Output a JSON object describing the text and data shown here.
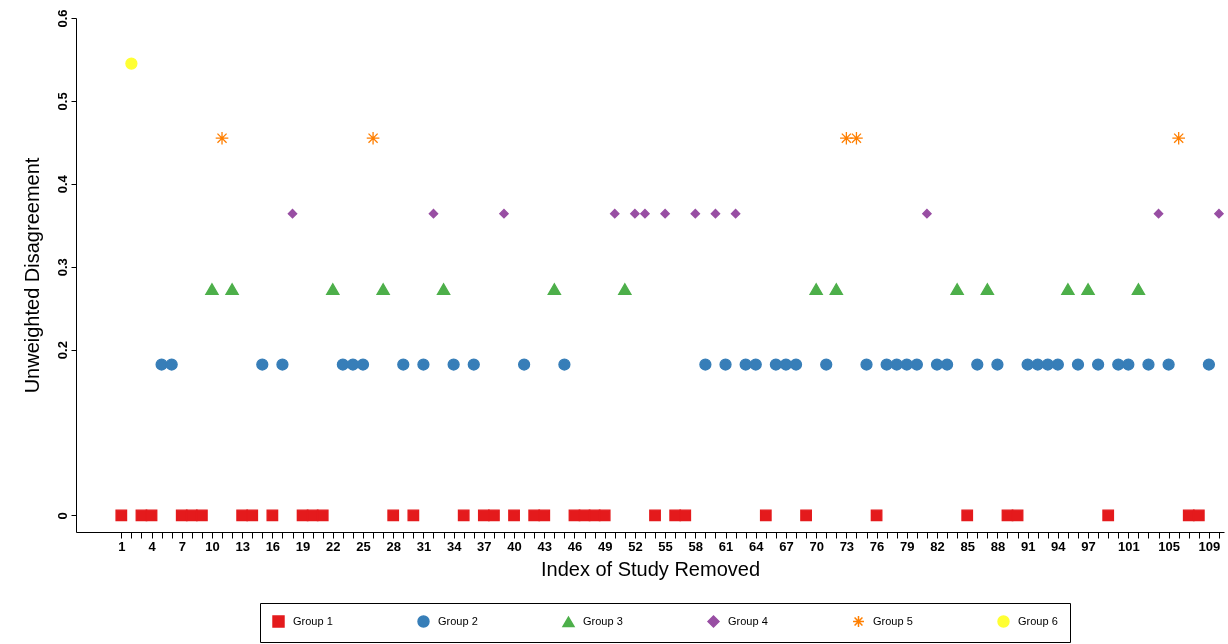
{
  "chart_data": {
    "type": "scatter",
    "xlabel": "Index of Study Removed",
    "ylabel": "Unweighted Disagreement",
    "xlim": [
      -3.5,
      110.5
    ],
    "ylim": [
      -0.02,
      0.6
    ],
    "yticks": [
      0,
      0.2,
      0.3,
      0.4,
      0.5,
      0.6
    ],
    "xticks": [
      1,
      {
        "value": 2,
        "label": null
      },
      {
        "value": 3,
        "label": null
      },
      4,
      {
        "value": 5,
        "label": null
      },
      {
        "value": 6,
        "label": null
      },
      7,
      {
        "value": 8,
        "label": null
      },
      {
        "value": 9,
        "label": null
      },
      10,
      {
        "value": 11,
        "label": null
      },
      {
        "value": 12,
        "label": null
      },
      13,
      {
        "value": 14,
        "label": null
      },
      {
        "value": 15,
        "label": null
      },
      16,
      {
        "value": 17,
        "label": null
      },
      {
        "value": 18,
        "label": null
      },
      19,
      {
        "value": 20,
        "label": null
      },
      {
        "value": 21,
        "label": null
      },
      22,
      {
        "value": 23,
        "label": null
      },
      {
        "value": 24,
        "label": null
      },
      25,
      {
        "value": 26,
        "label": null
      },
      {
        "value": 27,
        "label": null
      },
      28,
      {
        "value": 29,
        "label": null
      },
      {
        "value": 30,
        "label": null
      },
      31,
      {
        "value": 32,
        "label": null
      },
      {
        "value": 33,
        "label": null
      },
      34,
      {
        "value": 35,
        "label": null
      },
      {
        "value": 36,
        "label": null
      },
      37,
      {
        "value": 38,
        "label": null
      },
      {
        "value": 39,
        "label": null
      },
      40,
      {
        "value": 41,
        "label": null
      },
      {
        "value": 42,
        "label": null
      },
      43,
      {
        "value": 44,
        "label": null
      },
      {
        "value": 45,
        "label": null
      },
      46,
      {
        "value": 47,
        "label": null
      },
      {
        "value": 48,
        "label": null
      },
      49,
      {
        "value": 50,
        "label": null
      },
      {
        "value": 51,
        "label": null
      },
      52,
      {
        "value": 53,
        "label": null
      },
      {
        "value": 54,
        "label": null
      },
      55,
      {
        "value": 56,
        "label": null
      },
      {
        "value": 57,
        "label": null
      },
      58,
      {
        "value": 59,
        "label": null
      },
      {
        "value": 60,
        "label": null
      },
      61,
      {
        "value": 62,
        "label": null
      },
      {
        "value": 63,
        "label": null
      },
      64,
      {
        "value": 65,
        "label": null
      },
      {
        "value": 66,
        "label": null
      },
      67,
      {
        "value": 68,
        "label": null
      },
      {
        "value": 69,
        "label": null
      },
      70,
      {
        "value": 71,
        "label": null
      },
      {
        "value": 72,
        "label": null
      },
      73,
      {
        "value": 74,
        "label": null
      },
      {
        "value": 75,
        "label": null
      },
      76,
      {
        "value": 77,
        "label": null
      },
      {
        "value": 78,
        "label": null
      },
      79,
      {
        "value": 80,
        "label": null
      },
      {
        "value": 81,
        "label": null
      },
      82,
      {
        "value": 83,
        "label": null
      },
      {
        "value": 84,
        "label": null
      },
      85,
      {
        "value": 86,
        "label": null
      },
      {
        "value": 87,
        "label": null
      },
      88,
      {
        "value": 89,
        "label": null
      },
      {
        "value": 90,
        "label": null
      },
      91,
      {
        "value": 92,
        "label": null
      },
      {
        "value": 93,
        "label": null
      },
      94,
      {
        "value": 95,
        "label": null
      },
      {
        "value": 96,
        "label": null
      },
      97,
      {
        "value": 98,
        "label": null
      },
      {
        "value": 99,
        "label": null
      },
      {
        "value": 100,
        "label": null
      },
      101,
      {
        "value": 102,
        "label": null
      },
      {
        "value": 103,
        "label": null
      },
      {
        "value": 104,
        "label": null
      },
      105,
      {
        "value": 106,
        "label": null
      },
      {
        "value": 107,
        "label": null
      },
      {
        "value": 108,
        "label": null
      },
      109,
      {
        "value": 110,
        "label": null
      }
    ],
    "grid": false,
    "legend": "bottom",
    "series": [
      {
        "name": "Group 1",
        "color": "#e41a1c",
        "marker": "square",
        "x": [
          1,
          3,
          4,
          7,
          8,
          9,
          13,
          14,
          16,
          19,
          20,
          21,
          28,
          30,
          35,
          37,
          38,
          40,
          42,
          43,
          46,
          47,
          48,
          49,
          54,
          56,
          57,
          65,
          69,
          76,
          85,
          89,
          90,
          99,
          107,
          108
        ],
        "values": [
          0,
          0,
          0,
          0,
          0,
          0,
          0,
          0,
          0,
          0,
          0,
          0,
          0,
          0,
          0,
          0,
          0,
          0,
          0,
          0,
          0,
          0,
          0,
          0,
          0,
          0,
          0,
          0,
          0,
          0,
          0,
          0,
          0,
          0,
          0,
          0
        ]
      },
      {
        "name": "Group 2",
        "color": "#377eb8",
        "marker": "circle",
        "x": [
          5,
          6,
          15,
          17,
          23,
          24,
          25,
          29,
          31,
          34,
          36,
          41,
          45,
          59,
          61,
          63,
          64,
          66,
          67,
          68,
          71,
          75,
          77,
          78,
          79,
          80,
          82,
          83,
          86,
          88,
          91,
          92,
          93,
          94,
          96,
          98,
          100,
          101,
          103,
          105,
          109
        ],
        "values": [
          0.182,
          0.182,
          0.182,
          0.182,
          0.182,
          0.182,
          0.182,
          0.182,
          0.182,
          0.182,
          0.182,
          0.182,
          0.182,
          0.182,
          0.182,
          0.182,
          0.182,
          0.182,
          0.182,
          0.182,
          0.182,
          0.182,
          0.182,
          0.182,
          0.182,
          0.182,
          0.182,
          0.182,
          0.182,
          0.182,
          0.182,
          0.182,
          0.182,
          0.182,
          0.182,
          0.182,
          0.182,
          0.182,
          0.182,
          0.182,
          0.182
        ]
      },
      {
        "name": "Group 3",
        "color": "#4daf4a",
        "marker": "triangle",
        "x": [
          10,
          12,
          22,
          27,
          33,
          44,
          51,
          70,
          72,
          84,
          87,
          95,
          97,
          102
        ],
        "values": [
          0.273,
          0.273,
          0.273,
          0.273,
          0.273,
          0.273,
          0.273,
          0.273,
          0.273,
          0.273,
          0.273,
          0.273,
          0.273,
          0.273
        ]
      },
      {
        "name": "Group 4",
        "color": "#984ea3",
        "marker": "diamond",
        "x": [
          18,
          32,
          39,
          50,
          52,
          53,
          55,
          58,
          60,
          62,
          81,
          104,
          110
        ],
        "values": [
          0.364,
          0.364,
          0.364,
          0.364,
          0.364,
          0.364,
          0.364,
          0.364,
          0.364,
          0.364,
          0.364,
          0.364,
          0.364
        ]
      },
      {
        "name": "Group 5",
        "color": "#ff7f00",
        "marker": "cross",
        "x": [
          11,
          26,
          73,
          74,
          106
        ],
        "values": [
          0.455,
          0.455,
          0.455,
          0.455,
          0.455
        ]
      },
      {
        "name": "Group 6",
        "color": "#ffff33",
        "marker": "circle",
        "x": [
          2
        ],
        "values": [
          0.545
        ]
      }
    ]
  }
}
